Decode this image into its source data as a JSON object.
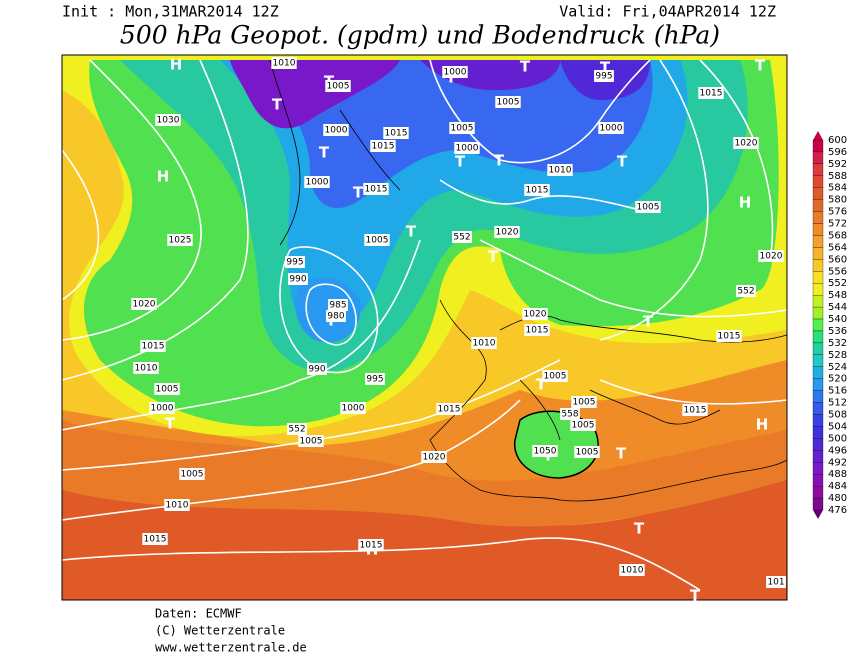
{
  "header": {
    "init": "Init : Mon,31MAR2014 12Z",
    "valid": "Valid: Fri,04APR2014 12Z",
    "title": "500 hPa Geopot. (gpdm) und Bodendruck (hPa)"
  },
  "legend": {
    "levels": [
      600,
      596,
      592,
      588,
      584,
      580,
      576,
      572,
      568,
      564,
      560,
      556,
      552,
      548,
      544,
      540,
      536,
      532,
      528,
      524,
      520,
      516,
      512,
      508,
      504,
      500,
      496,
      492,
      488,
      484,
      480,
      476
    ],
    "colors": [
      "#c8004a",
      "#d2204a",
      "#dc3c3c",
      "#e04a30",
      "#e05a28",
      "#e06a28",
      "#e87a28",
      "#f08c28",
      "#f5a028",
      "#f8b428",
      "#f8c828",
      "#f8e028",
      "#f0f020",
      "#c8f020",
      "#a0f028",
      "#50f050",
      "#28e078",
      "#20d0a0",
      "#20c8c8",
      "#20b0e0",
      "#2898f0",
      "#3078f0",
      "#3858f0",
      "#3840e8",
      "#4030e0",
      "#5028d8",
      "#6420d0",
      "#7818c8",
      "#8810b8",
      "#900ca0",
      "#800890",
      "#600070"
    ]
  },
  "pressure_labels": [
    "1010",
    "1000",
    "995",
    "1005",
    "1030",
    "1000",
    "1015",
    "1015",
    "1005",
    "1000",
    "1005",
    "1000",
    "1010",
    "1015",
    "1005",
    "1015",
    "1020",
    "1000",
    "1015",
    "1005",
    "552",
    "1020",
    "1025",
    "1020",
    "995",
    "990",
    "552",
    "1020",
    "985",
    "980",
    "1020",
    "1015",
    "1015",
    "1010",
    "1015",
    "1010",
    "990",
    "995",
    "1005",
    "1005",
    "1000",
    "1000",
    "1015",
    "1005",
    "558",
    "1015",
    "552",
    "1005",
    "1005",
    "1020",
    "1050",
    "1005",
    "1005",
    "1010",
    "1015",
    "1015",
    "1010",
    "101"
  ],
  "pressure_centers": [
    "H",
    "T",
    "T",
    "T",
    "T",
    "T",
    "T",
    "H",
    "T",
    "T",
    "T",
    "T",
    "T",
    "H",
    "T",
    "T",
    "T",
    "T",
    "T",
    "T",
    "T",
    "T",
    "H",
    "T",
    "H",
    "T"
  ],
  "footer": [
    "Daten: ECMWF",
    "(C) Wetterzentrale",
    "www.wetterzentrale.de"
  ]
}
